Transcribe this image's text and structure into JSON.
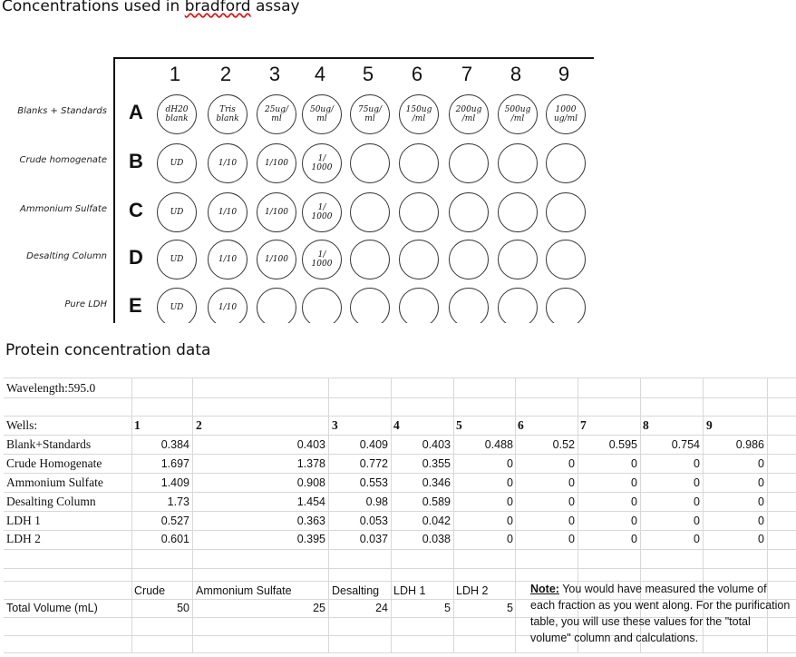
{
  "titles": {
    "plate_title_prefix": "Concentrations used in ",
    "plate_title_word": "bradford",
    "plate_title_suffix": " assay",
    "data_title": "Protein concentration data"
  },
  "plate": {
    "columns": [
      "1",
      "2",
      "3",
      "4",
      "5",
      "6",
      "7",
      "8",
      "9"
    ],
    "rows": [
      {
        "letter": "A",
        "label": "Blanks + Standards",
        "wells": [
          "dH20\nblank",
          "Tris\nblank",
          "25ug/\nml",
          "50ug/\nml",
          "75ug/\nml",
          "150ug\n/ml",
          "200ug\n/ml",
          "500ug\n/ml",
          "1000\nug/ml"
        ]
      },
      {
        "letter": "B",
        "label": "Crude homogenate",
        "wells": [
          "UD",
          "1/10",
          "1/100",
          "1/\n1000",
          "",
          "",
          "",
          "",
          ""
        ]
      },
      {
        "letter": "C",
        "label": "Ammonium Sulfate",
        "wells": [
          "UD",
          "1/10",
          "1/100",
          "1/\n1000",
          "",
          "",
          "",
          "",
          ""
        ]
      },
      {
        "letter": "D",
        "label": "Desalting Column",
        "wells": [
          "UD",
          "1/10",
          "1/100",
          "1/\n1000",
          "",
          "",
          "",
          "",
          ""
        ]
      },
      {
        "letter": "E",
        "label": "Pure LDH",
        "wells": [
          "UD",
          "1/10",
          "",
          "",
          "",
          "",
          "",
          "",
          ""
        ]
      }
    ]
  },
  "sheet": {
    "wavelength": "Wavelength:595.0",
    "wells_label": "Wells:",
    "well_numbers": [
      "1",
      "2",
      "3",
      "4",
      "5",
      "6",
      "7",
      "8",
      "9"
    ],
    "rows": [
      {
        "label": "Blank+Standards",
        "values": [
          "0.384",
          "0.403",
          "0.409",
          "0.403",
          "0.488",
          "0.52",
          "0.595",
          "0.754",
          "0.986"
        ]
      },
      {
        "label": "Crude Homogenate",
        "values": [
          "1.697",
          "1.378",
          "0.772",
          "0.355",
          "0",
          "0",
          "0",
          "0",
          "0"
        ]
      },
      {
        "label": "Ammonium Sulfate",
        "values": [
          "1.409",
          "0.908",
          "0.553",
          "0.346",
          "0",
          "0",
          "0",
          "0",
          "0"
        ]
      },
      {
        "label": "Desalting Column",
        "values": [
          "1.73",
          "1.454",
          "0.98",
          "0.589",
          "0",
          "0",
          "0",
          "0",
          "0"
        ]
      },
      {
        "label": "LDH 1",
        "values": [
          "0.527",
          "0.363",
          "0.053",
          "0.042",
          "0",
          "0",
          "0",
          "0",
          "0"
        ]
      },
      {
        "label": "LDH 2",
        "values": [
          "0.601",
          "0.395",
          "0.037",
          "0.038",
          "0",
          "0",
          "0",
          "0",
          "0"
        ]
      }
    ],
    "volume_headers": [
      "Crude",
      "Ammonium Sulfate",
      "Desalting",
      "LDH 1",
      "LDH 2"
    ],
    "volume_label": "Total Volume (mL)",
    "volume_values": [
      "50",
      "25",
      "24",
      "5",
      "5"
    ],
    "note_lead": "Note:",
    "note_text": " You would have measured the volume of each fraction as you went along. For the purification table, you will use these values for the \"total volume\" column and calculations."
  }
}
